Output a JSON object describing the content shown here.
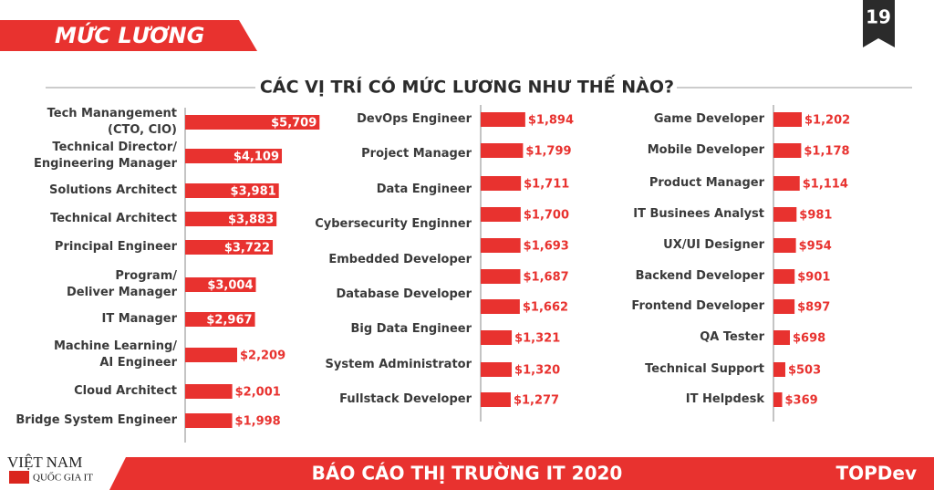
{
  "header": {
    "section": "MỨC LƯƠNG",
    "page": "19",
    "subtitle": "CÁC VỊ TRÍ CÓ MỨC LƯƠNG NHƯ THẾ NÀO?"
  },
  "footer": {
    "logo_top": "VIỆT NAM",
    "logo_bottom": "QUỐC GIA IT",
    "title": "BÁO CÁO THỊ TRƯỜNG IT 2020",
    "brand": "TOPDev"
  },
  "chart_data": [
    {
      "type": "bar",
      "orientation": "horizontal",
      "color": "#e8322f",
      "categories": [
        "Tech Manangement\n(CTO, CIO)",
        "Technical Director/\nEngineering Manager",
        "Solutions Architect",
        "Technical Architect",
        "Principal Engineer",
        "Program/\nDeliver Manager",
        "IT Manager",
        "Machine Learning/\nAI Engineer",
        "Cloud Architect",
        "Bridge System Engineer"
      ],
      "values": [
        5709,
        4109,
        3981,
        3883,
        3722,
        3004,
        2967,
        2209,
        2001,
        1998
      ],
      "value_labels": [
        "$5,709",
        "$4,109",
        "$3,981",
        "$3,883",
        "$3,722",
        "$3,004",
        "$2,967",
        "$2,209",
        "$2,001",
        "$1,998"
      ]
    },
    {
      "type": "bar",
      "orientation": "horizontal",
      "color": "#e8322f",
      "categories": [
        "DevOps Engineer",
        "Project Manager",
        "Data Engineer",
        "Cybersecurity Enginner",
        "Embedded Developer",
        null,
        "Database Developer",
        "Big Data Engineer",
        "System Administrator",
        "Fullstack Developer"
      ],
      "values": [
        1894,
        1799,
        1711,
        1700,
        1693,
        1687,
        1662,
        1321,
        1320,
        1277
      ],
      "value_labels": [
        "$1,894",
        "$1,799",
        "$1,711",
        "$1,700",
        "$1,693",
        "$1,687",
        "$1,662",
        "$1,321",
        "$1,320",
        "$1,277"
      ]
    },
    {
      "type": "bar",
      "orientation": "horizontal",
      "color": "#e8322f",
      "categories": [
        "Game Developer",
        "Mobile Developer",
        "Product Manager",
        "IT Businees Analyst",
        "UX/UI Designer",
        "Backend Developer",
        "Frontend Developer",
        "QA Tester",
        "Technical Support",
        "IT Helpdesk"
      ],
      "values": [
        1202,
        1178,
        1114,
        981,
        954,
        901,
        897,
        698,
        503,
        369
      ],
      "value_labels": [
        "$1,202",
        "$1,178",
        "$1,114",
        "$981",
        "$954",
        "$901",
        "$897",
        "$698",
        "$503",
        "$369"
      ]
    }
  ]
}
